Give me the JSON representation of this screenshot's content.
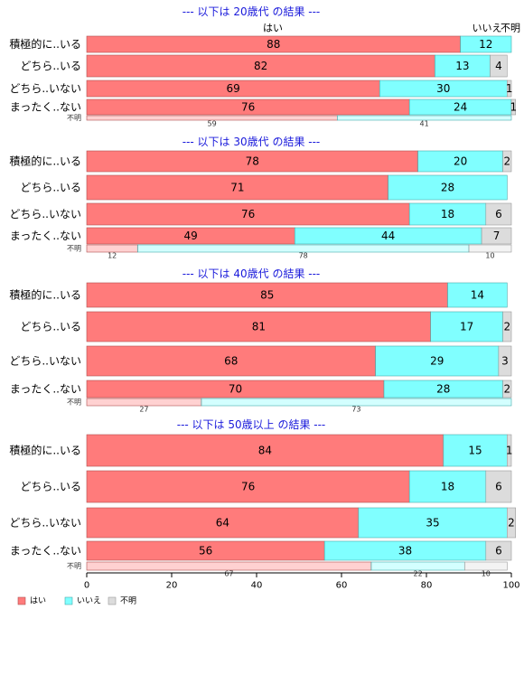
{
  "chart_data": {
    "type": "bar",
    "orientation": "horizontal",
    "stacked": true,
    "xlim": [
      0,
      100
    ],
    "x_ticks": [
      "0",
      "20",
      "40",
      "60",
      "80",
      "100"
    ],
    "column_headers": [
      "はい",
      "いいえ",
      "不明"
    ],
    "legend": {
      "position": "bottom-left",
      "entries": [
        {
          "label": "はい",
          "color": "#ff7b7b"
        },
        {
          "label": "いいえ",
          "color": "#80ffff"
        },
        {
          "label": "不明",
          "color": "#dcdcdc"
        }
      ]
    },
    "panels": [
      {
        "title": "--- 以下は 20歳代 の結果 ---",
        "categories": [
          "積極的に..いる",
          "どちら..いる",
          "どちら..いない",
          "まったく..ない",
          "不明"
        ],
        "series": [
          {
            "name": "はい",
            "values": [
              88,
              82,
              69,
              76,
              59
            ]
          },
          {
            "name": "いいえ",
            "values": [
              12,
              13,
              30,
              24,
              41
            ]
          },
          {
            "name": "不明",
            "values": [
              0,
              4,
              1,
              1,
              0
            ]
          }
        ]
      },
      {
        "title": "--- 以下は 30歳代 の結果 ---",
        "categories": [
          "積極的に..いる",
          "どちら..いる",
          "どちら..いない",
          "まったく..ない",
          "不明"
        ],
        "series": [
          {
            "name": "はい",
            "values": [
              78,
              71,
              76,
              49,
              12
            ]
          },
          {
            "name": "いいえ",
            "values": [
              20,
              28,
              18,
              44,
              78
            ]
          },
          {
            "name": "不明",
            "values": [
              2,
              0,
              6,
              7,
              10
            ]
          }
        ]
      },
      {
        "title": "--- 以下は 40歳代 の結果 ---",
        "categories": [
          "積極的に..いる",
          "どちら..いる",
          "どちら..いない",
          "まったく..ない",
          "不明"
        ],
        "series": [
          {
            "name": "はい",
            "values": [
              85,
              81,
              68,
              70,
              27
            ]
          },
          {
            "name": "いいえ",
            "values": [
              14,
              17,
              29,
              28,
              73
            ]
          },
          {
            "name": "不明",
            "values": [
              0,
              2,
              3,
              2,
              0
            ]
          }
        ]
      },
      {
        "title": "--- 以下は 50歳以上 の結果 ---",
        "categories": [
          "積極的に..いる",
          "どちら..いる",
          "どちら..いない",
          "まったく..ない",
          "不明"
        ],
        "series": [
          {
            "name": "はい",
            "values": [
              84,
              76,
              64,
              56,
              67
            ]
          },
          {
            "name": "いいえ",
            "values": [
              15,
              18,
              35,
              38,
              22
            ]
          },
          {
            "name": "不明",
            "values": [
              1,
              6,
              2,
              6,
              10
            ]
          }
        ]
      }
    ]
  }
}
